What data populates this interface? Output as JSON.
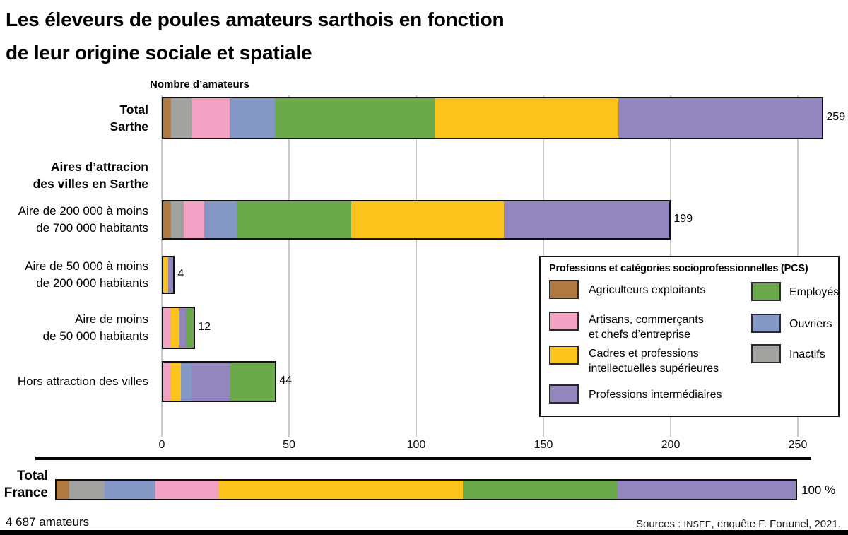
{
  "title": {
    "line1": "Les éleveurs de poules amateurs sarthois en fonction",
    "line2": "de leur origine sociale et spatiale"
  },
  "axis_title": "Nombre d’amateurs",
  "pcs_colors": {
    "agriculteurs": "#b0793f",
    "artisans": "#f2a3c4",
    "cadres": "#fbc31c",
    "intermediaires": "#9386bf",
    "employes": "#6ba94a",
    "ouvriers": "#8497c5",
    "inactifs": "#a1a19f"
  },
  "legend": {
    "title": "Professions et catégories socioprofessionnelles (PCS)",
    "items": [
      {
        "key": "agriculteurs",
        "col": 1,
        "lines": [
          "Agriculteurs exploitants"
        ]
      },
      {
        "key": "artisans",
        "col": 1,
        "lines": [
          "Artisans, commerçants",
          "et chefs d’entreprise"
        ]
      },
      {
        "key": "cadres",
        "col": 1,
        "lines": [
          "Cadres et professions",
          "intellectuelles supérieures"
        ]
      },
      {
        "key": "intermediaires",
        "col": 1,
        "lines": [
          "Professions intermédiaires"
        ]
      },
      {
        "key": "employes",
        "col": 2,
        "lines": [
          "Employés"
        ]
      },
      {
        "key": "ouvriers",
        "col": 2,
        "lines": [
          "Ouvriers"
        ]
      },
      {
        "key": "inactifs",
        "col": 2,
        "lines": [
          "Inactifs"
        ]
      }
    ]
  },
  "chart_data": {
    "type": "bar",
    "stacked": true,
    "orientation": "horizontal",
    "xlabel": "Nombre d’amateurs",
    "x_ticks": [
      0,
      50,
      100,
      150,
      200,
      250
    ],
    "xlim": [
      0,
      250
    ],
    "grid": true,
    "legend_position": "inside-right",
    "rows": [
      {
        "kind": "bar",
        "bold": true,
        "lines": [
          "Total",
          "Sarthe"
        ],
        "total": 259,
        "value_label": "259",
        "segments": [
          [
            "agriculteurs",
            3
          ],
          [
            "inactifs",
            8
          ],
          [
            "artisans",
            15
          ],
          [
            "ouvriers",
            18
          ],
          [
            "employes",
            63
          ],
          [
            "cadres",
            72
          ],
          [
            "intermediaires",
            80
          ]
        ]
      },
      {
        "kind": "header",
        "bold": true,
        "lines": [
          "Aires d’attracion",
          "des villes en Sarthe"
        ]
      },
      {
        "kind": "bar",
        "bold": false,
        "lines": [
          "Aire de 200 000 à  moins",
          "de 700 000 habitants"
        ],
        "total": 199,
        "value_label": "199",
        "segments": [
          [
            "agriculteurs",
            3
          ],
          [
            "inactifs",
            5
          ],
          [
            "artisans",
            8
          ],
          [
            "ouvriers",
            13
          ],
          [
            "employes",
            45
          ],
          [
            "cadres",
            60
          ],
          [
            "intermediaires",
            65
          ]
        ]
      },
      {
        "kind": "bar",
        "bold": false,
        "lines": [
          "Aire de 50 000 à  moins",
          "de 200 000 habitants"
        ],
        "total": 4,
        "value_label": "4",
        "segments": [
          [
            "cadres",
            2
          ],
          [
            "intermediaires",
            2
          ]
        ]
      },
      {
        "kind": "bar",
        "bold": false,
        "lines": [
          "Aire de moins",
          "de 50 000 habitants"
        ],
        "total": 12,
        "value_label": "12",
        "segments": [
          [
            "artisans",
            3
          ],
          [
            "cadres",
            3
          ],
          [
            "intermediaires",
            3
          ],
          [
            "employes",
            3
          ]
        ]
      },
      {
        "kind": "bar",
        "bold": false,
        "lines": [
          "Hors attraction des villes"
        ],
        "total": 44,
        "value_label": "44",
        "segments": [
          [
            "artisans",
            3
          ],
          [
            "cadres",
            4
          ],
          [
            "ouvriers",
            4
          ],
          [
            "intermediaires",
            15
          ],
          [
            "employes",
            18
          ]
        ]
      }
    ],
    "france_row": {
      "lines": [
        "Total",
        "France"
      ],
      "value_label": "100 %",
      "total_percent": 100,
      "segments_percent": [
        [
          "agriculteurs",
          1.7
        ],
        [
          "inactifs",
          4.8
        ],
        [
          "ouvriers",
          6.9
        ],
        [
          "artisans",
          8.6
        ],
        [
          "cadres",
          33
        ],
        [
          "employes",
          20.8
        ],
        [
          "intermediaires",
          24.2
        ]
      ]
    }
  },
  "france_subtitle": "4 687 amateurs",
  "source": {
    "pre": "Sources : ",
    "caps": "INSEE",
    "post": ", enquête F. Fortunel, 2021."
  }
}
